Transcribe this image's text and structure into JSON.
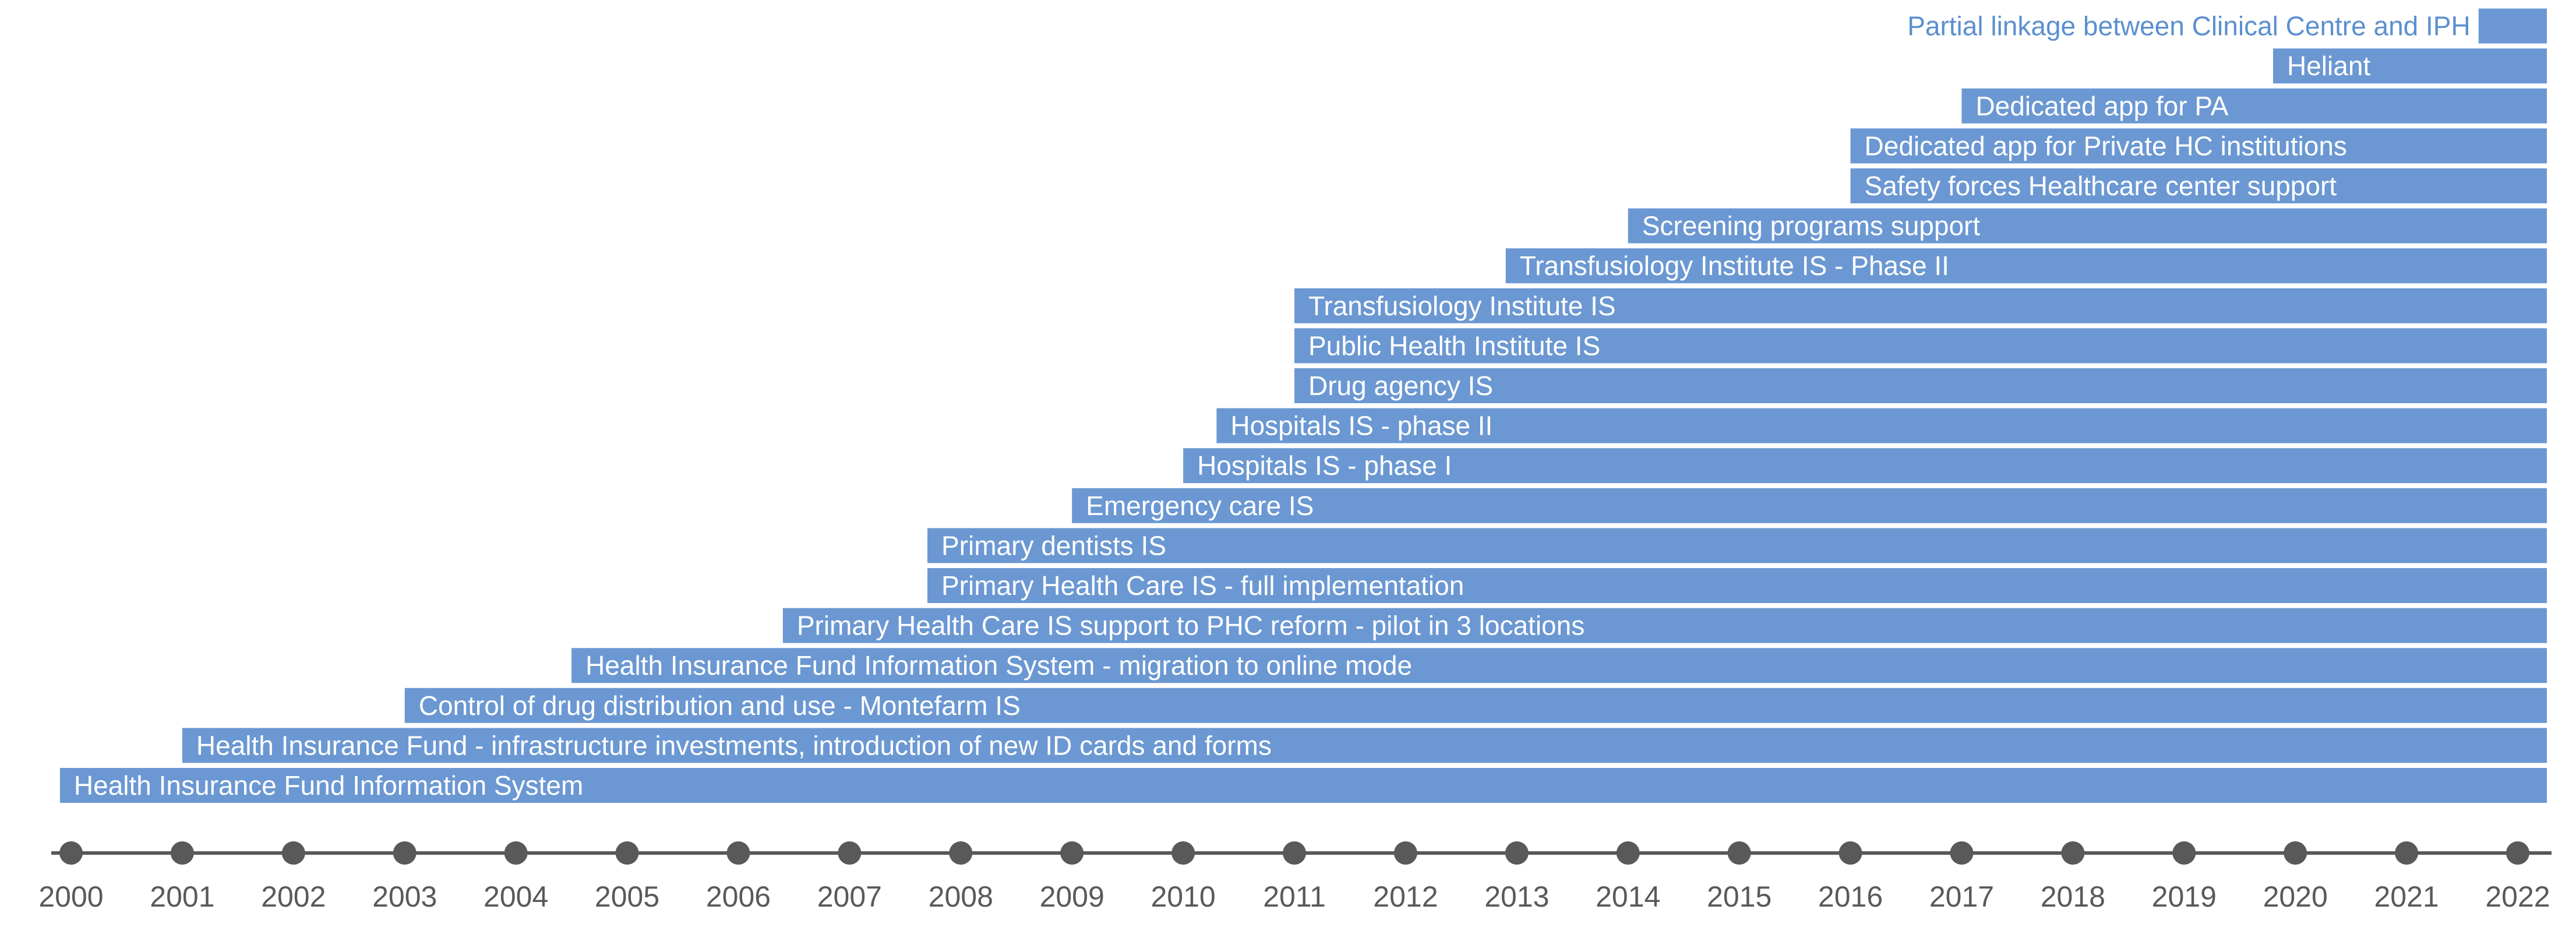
{
  "chart_data": {
    "type": "bar",
    "orientation": "horizontal-timeline",
    "bar_color": "#6b98d2",
    "outside_label_color": "#5b8fd0",
    "axis_color": "#595959",
    "end_year": 2022,
    "xlim": [
      2000,
      2022
    ],
    "x_ticks": [
      2000,
      2001,
      2002,
      2003,
      2004,
      2005,
      2006,
      2007,
      2008,
      2009,
      2010,
      2011,
      2012,
      2013,
      2014,
      2015,
      2016,
      2017,
      2018,
      2019,
      2020,
      2021,
      2022
    ],
    "bars": [
      {
        "label": "Health Insurance Fund Information System",
        "start": 1999.9
      },
      {
        "label": "Health Insurance Fund - infrastructure investments, introduction of new ID cards and forms",
        "start": 2001.0
      },
      {
        "label": "Control of drug distribution and use - Montefarm IS",
        "start": 2003.0
      },
      {
        "label": "Health Insurance Fund Information System - migration to online mode",
        "start": 2004.5
      },
      {
        "label": "Primary Health Care IS support to PHC reform - pilot in 3 locations",
        "start": 2006.4
      },
      {
        "label": "Primary Health Care IS - full implementation",
        "start": 2007.7
      },
      {
        "label": "Primary dentists IS",
        "start": 2007.7
      },
      {
        "label": "Emergency care IS",
        "start": 2009.0
      },
      {
        "label": "Hospitals IS - phase I",
        "start": 2010.0
      },
      {
        "label": "Hospitals IS - phase II",
        "start": 2010.3
      },
      {
        "label": "Drug agency IS",
        "start": 2011.0
      },
      {
        "label": "Public Health Institute IS",
        "start": 2011.0
      },
      {
        "label": "Transfusiology Institute IS",
        "start": 2011.0
      },
      {
        "label": "Transfusiology Institute IS - Phase II",
        "start": 2012.9
      },
      {
        "label": "Screening programs support",
        "start": 2014.0
      },
      {
        "label": "Safety forces Healthcare center support",
        "start": 2016.0
      },
      {
        "label": "Dedicated app for Private HC institutions",
        "start": 2016.0
      },
      {
        "label": "Dedicated app for PA",
        "start": 2017.0
      },
      {
        "label": "Heliant",
        "start": 2019.8
      },
      {
        "label": "Partial linkage between Clinical Centre and IPH",
        "start": 2021.7,
        "label_outside": true
      }
    ]
  }
}
